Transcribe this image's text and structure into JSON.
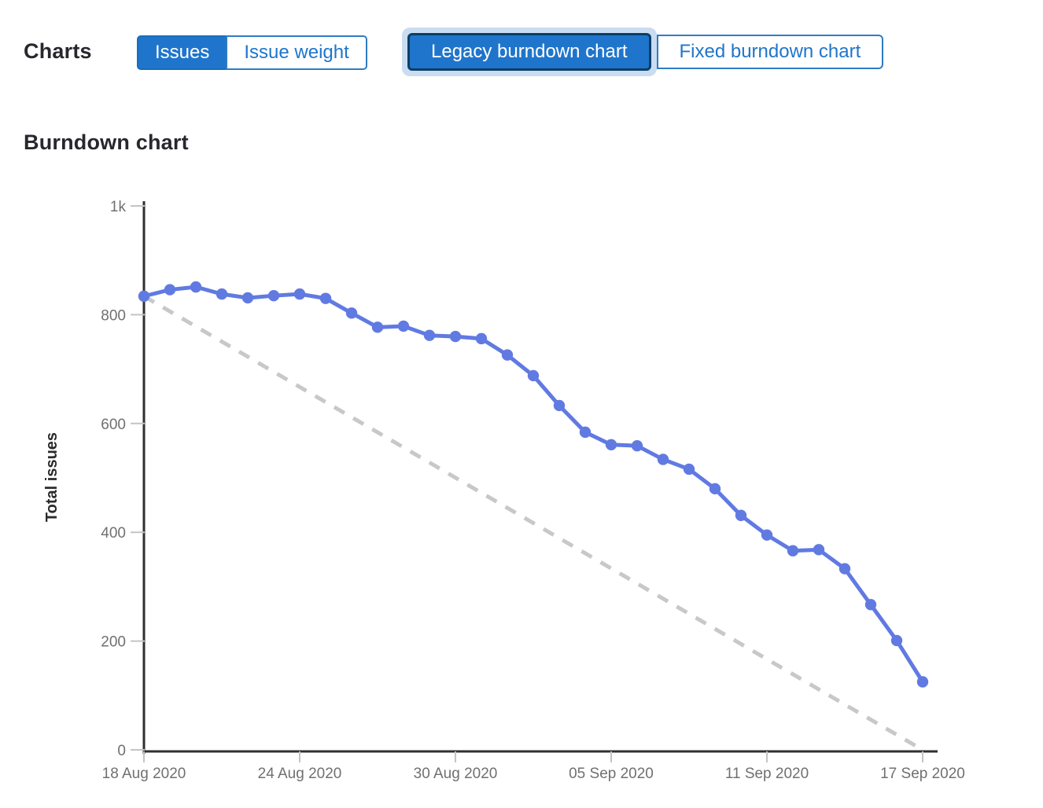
{
  "header": {
    "charts_label": "Charts",
    "metric_toggle": {
      "options": [
        {
          "label": "Issues",
          "selected": true
        },
        {
          "label": "Issue weight",
          "selected": false
        }
      ]
    },
    "chart_type_toggle": {
      "options": [
        {
          "label": "Legacy burndown chart",
          "selected": true,
          "focused": true
        },
        {
          "label": "Fixed burndown chart",
          "selected": false
        }
      ]
    }
  },
  "section_title": "Burndown chart",
  "chart_data": {
    "type": "line",
    "title": "Burndown chart",
    "xlabel": "",
    "ylabel": "Total issues",
    "ylim": [
      0,
      1000
    ],
    "grid": false,
    "legend_position": "none",
    "y_ticks": [
      {
        "value": 0,
        "label": "0"
      },
      {
        "value": 200,
        "label": "200"
      },
      {
        "value": 400,
        "label": "400"
      },
      {
        "value": 600,
        "label": "600"
      },
      {
        "value": 800,
        "label": "800"
      },
      {
        "value": 1000,
        "label": "1k"
      }
    ],
    "x_ticks": [
      {
        "day": 0,
        "label": "18 Aug 2020"
      },
      {
        "day": 6,
        "label": "24 Aug 2020"
      },
      {
        "day": 12,
        "label": "30 Aug 2020"
      },
      {
        "day": 18,
        "label": "05 Sep 2020"
      },
      {
        "day": 24,
        "label": "11 Sep 2020"
      },
      {
        "day": 30,
        "label": "17 Sep 2020"
      }
    ],
    "dates": [
      "18 Aug 2020",
      "19 Aug 2020",
      "20 Aug 2020",
      "21 Aug 2020",
      "22 Aug 2020",
      "23 Aug 2020",
      "24 Aug 2020",
      "25 Aug 2020",
      "26 Aug 2020",
      "27 Aug 2020",
      "28 Aug 2020",
      "29 Aug 2020",
      "30 Aug 2020",
      "31 Aug 2020",
      "01 Sep 2020",
      "02 Sep 2020",
      "03 Sep 2020",
      "04 Sep 2020",
      "05 Sep 2020",
      "06 Sep 2020",
      "07 Sep 2020",
      "08 Sep 2020",
      "09 Sep 2020",
      "10 Sep 2020",
      "11 Sep 2020",
      "12 Sep 2020",
      "13 Sep 2020",
      "14 Sep 2020",
      "15 Sep 2020",
      "16 Sep 2020",
      "17 Sep 2020"
    ],
    "series": [
      {
        "name": "Open issues",
        "style": "solid",
        "color": "#617ae2",
        "values": [
          834,
          846,
          851,
          838,
          831,
          835,
          838,
          830,
          803,
          777,
          779,
          762,
          760,
          756,
          726,
          688,
          633,
          584,
          561,
          559,
          534,
          516,
          480,
          431,
          395,
          366,
          368,
          333,
          267,
          201,
          125
        ]
      },
      {
        "name": "Guideline",
        "style": "dashed",
        "color": "#c8c8c8",
        "x_days": [
          0,
          30
        ],
        "values": [
          834,
          0
        ]
      }
    ]
  },
  "colors": {
    "accent_blue": "#1f75cb",
    "selected_border": "#0a3e66",
    "focus_ring": "#c9dcf2",
    "line_blue": "#617ae2",
    "ideal_gray": "#c8c8c8",
    "axis_line": "#2f2f2f",
    "tick": "#c4c4c4",
    "axis_text": "#707070",
    "heading_text": "#28272d"
  }
}
